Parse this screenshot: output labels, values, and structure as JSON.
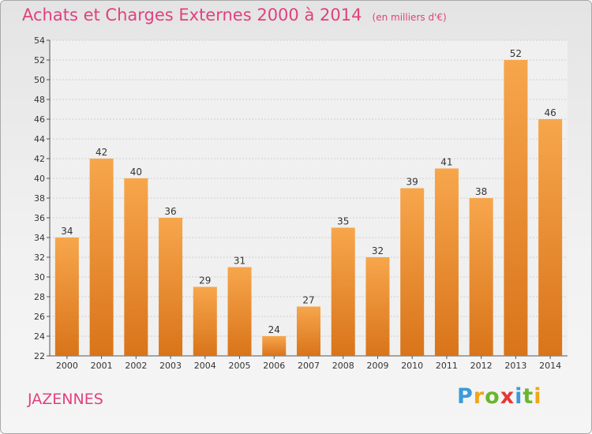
{
  "chart_data": {
    "type": "bar",
    "title": "Achats et Charges Externes 2000 à 2014",
    "subtitle": "(en milliers d'€)",
    "categories": [
      "2000",
      "2001",
      "2002",
      "2003",
      "2004",
      "2005",
      "2006",
      "2007",
      "2008",
      "2009",
      "2010",
      "2011",
      "2012",
      "2013",
      "2014"
    ],
    "values": [
      34,
      42,
      40,
      36,
      29,
      31,
      24,
      27,
      35,
      32,
      39,
      41,
      38,
      52,
      46
    ],
    "ylim": [
      22,
      54
    ],
    "yticks": [
      22,
      24,
      26,
      28,
      30,
      32,
      34,
      36,
      38,
      40,
      42,
      44,
      46,
      48,
      50,
      52,
      54
    ],
    "grid": true,
    "xlabel": "",
    "ylabel": "",
    "bar_color": "#f08c2a",
    "title_color": "#e0417e"
  },
  "commune": "JAZENNES",
  "logo": {
    "letters": [
      "P",
      "r",
      "o",
      "x",
      "i",
      "t",
      "i"
    ],
    "colors": [
      "#3a9ad9",
      "#f2a516",
      "#6bb52e",
      "#e53935",
      "#3a9ad9",
      "#6bb52e",
      "#f2a516"
    ]
  }
}
